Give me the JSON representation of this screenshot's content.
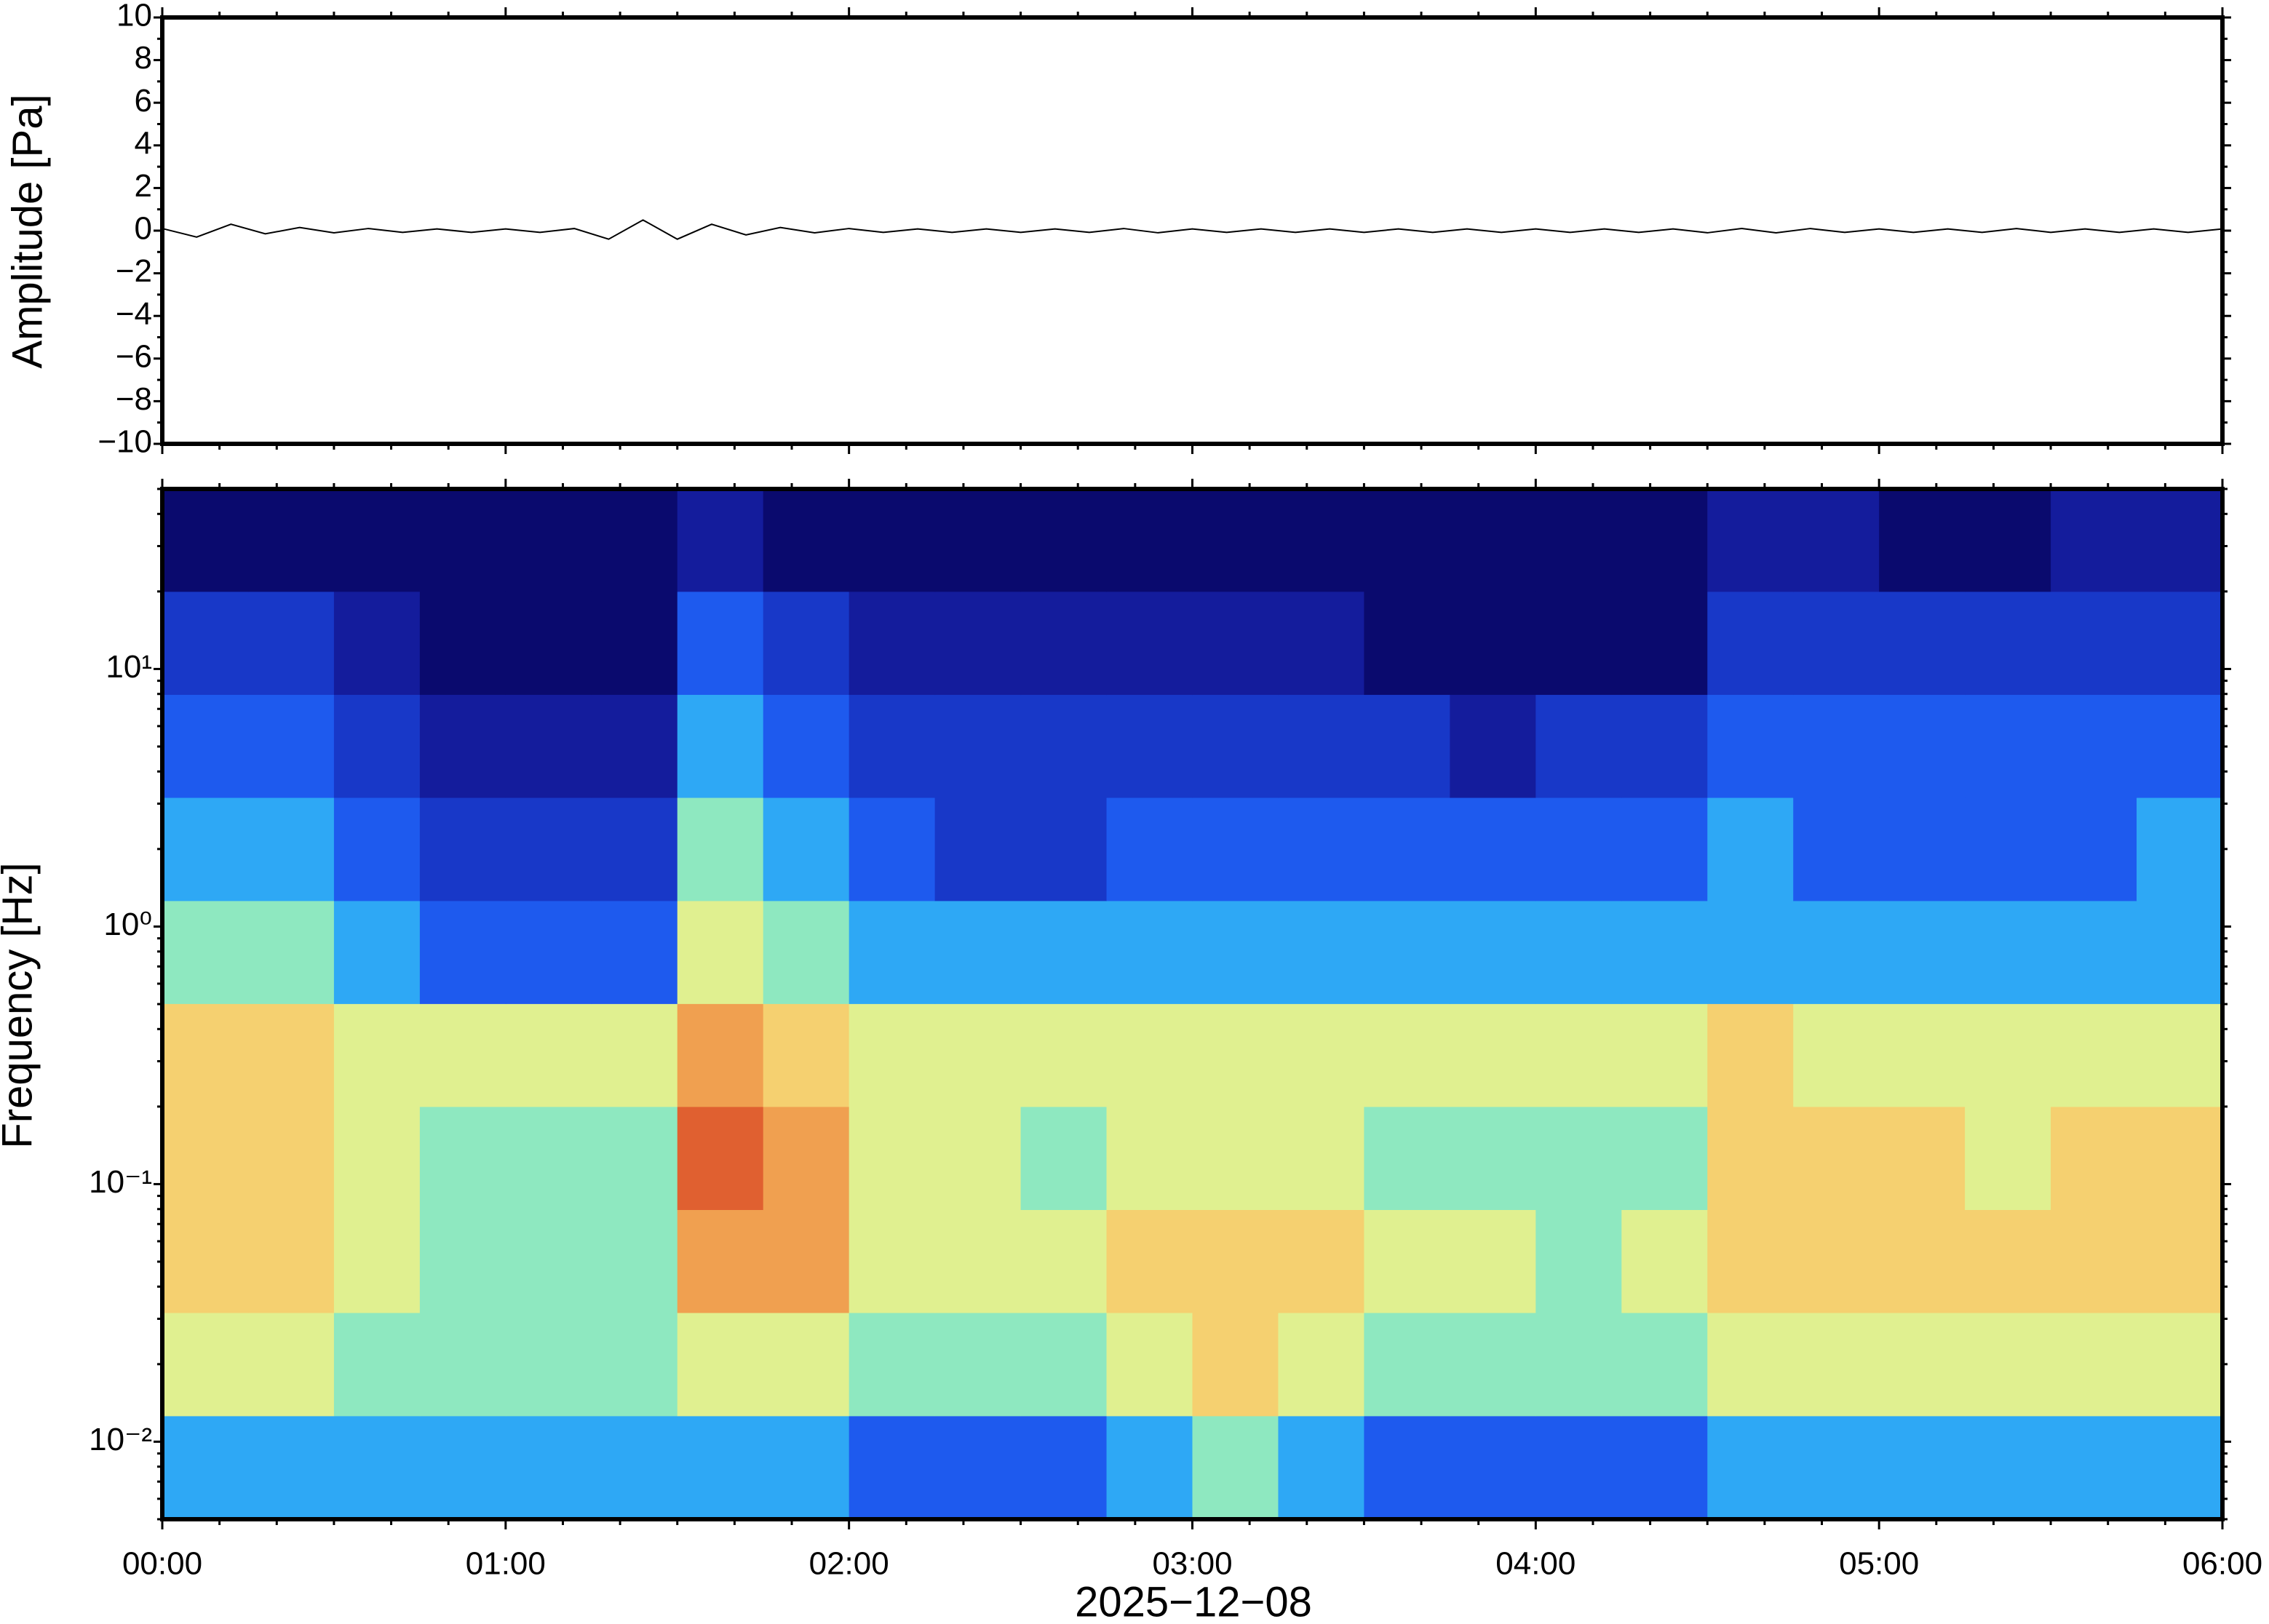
{
  "chart_data": [
    {
      "type": "line",
      "ylabel": "Amplitude [Pa]",
      "color": "#000000",
      "x": [
        0,
        0.1,
        0.2,
        0.3,
        0.4,
        0.5,
        0.6,
        0.7,
        0.8,
        0.9,
        1,
        1.1,
        1.2,
        1.3,
        1.4,
        1.5,
        1.6,
        1.7,
        1.8,
        1.9,
        2,
        2.1,
        2.2,
        2.3,
        2.4,
        2.5,
        2.6,
        2.7,
        2.8,
        2.9,
        3,
        3.1,
        3.2,
        3.3,
        3.4,
        3.5,
        3.6,
        3.7,
        3.8,
        3.9,
        4,
        4.1,
        4.2,
        4.3,
        4.4,
        4.5,
        4.6,
        4.7,
        4.8,
        4.9,
        5,
        5.1,
        5.2,
        5.3,
        5.4,
        5.5,
        5.6,
        5.7,
        5.8,
        5.9,
        6
      ],
      "values": [
        0.1,
        -0.3,
        0.3,
        -0.15,
        0.15,
        -0.1,
        0.1,
        -0.08,
        0.08,
        -0.08,
        0.08,
        -0.08,
        0.1,
        -0.4,
        0.5,
        -0.4,
        0.3,
        -0.2,
        0.15,
        -0.1,
        0.1,
        -0.08,
        0.08,
        -0.08,
        0.08,
        -0.08,
        0.08,
        -0.08,
        0.1,
        -0.1,
        0.08,
        -0.08,
        0.08,
        -0.08,
        0.08,
        -0.08,
        0.08,
        -0.08,
        0.08,
        -0.08,
        0.08,
        -0.08,
        0.08,
        -0.08,
        0.08,
        -0.1,
        0.1,
        -0.1,
        0.1,
        -0.08,
        0.08,
        -0.08,
        0.08,
        -0.08,
        0.1,
        -0.08,
        0.08,
        -0.08,
        0.08,
        -0.08,
        0.08
      ],
      "xlim": [
        0,
        6
      ],
      "xticks": [
        0,
        1,
        2,
        3,
        4,
        5,
        6
      ],
      "ylim": [
        -10,
        10
      ],
      "yticks": [
        {
          "value": -10,
          "label": "−10"
        },
        {
          "value": -8,
          "label": "−8"
        },
        {
          "value": -6,
          "label": "−6"
        },
        {
          "value": -4,
          "label": "−4"
        },
        {
          "value": -2,
          "label": "−2"
        },
        0,
        2,
        4,
        6,
        8,
        10
      ]
    },
    {
      "type": "heatmap",
      "ylabel": "Frequency [Hz]",
      "xlabel": "2025−12−08",
      "log_y": true,
      "colors": [
        "#0a0a6e",
        "#141c9c",
        "#1838c8",
        "#1e5aee",
        "#2ea8f5",
        "#50d8f0",
        "#8ee8c0",
        "#e0f090",
        "#f5d070",
        "#f0a050",
        "#e06030"
      ],
      "xbins": [
        0,
        0.25,
        0.5,
        0.75,
        1,
        1.25,
        1.5,
        1.75,
        2,
        2.25,
        2.5,
        2.75,
        3,
        3.25,
        3.5,
        3.75,
        4,
        4.25,
        4.5,
        4.75,
        5,
        5.25,
        5.5,
        5.75,
        6
      ],
      "ybins": [
        0.005,
        0.0126,
        0.0317,
        0.0796,
        0.2,
        0.502,
        1.26,
        3.17,
        7.96,
        20,
        50
      ],
      "z": [
        [
          4,
          4,
          4,
          4,
          4,
          4,
          4,
          4,
          3,
          3,
          3,
          4,
          5,
          4,
          3,
          3,
          3,
          3,
          4,
          4,
          4,
          4,
          4,
          4
        ],
        [
          6,
          6,
          5,
          5,
          5,
          5,
          6,
          6,
          5,
          5,
          5,
          6,
          7,
          6,
          5,
          5,
          5,
          5,
          6,
          6,
          6,
          6,
          6,
          6
        ],
        [
          7,
          7,
          6,
          5,
          5,
          5,
          8,
          8,
          6,
          6,
          6,
          7,
          7,
          7,
          6,
          6,
          5,
          6,
          7,
          7,
          7,
          7,
          7,
          7
        ],
        [
          7,
          7,
          6,
          5,
          5,
          5,
          9,
          8,
          6,
          6,
          5,
          6,
          6,
          6,
          5,
          5,
          5,
          5,
          7,
          7,
          7,
          6,
          7,
          7
        ],
        [
          7,
          7,
          6,
          6,
          6,
          6,
          8,
          7,
          6,
          6,
          6,
          6,
          6,
          6,
          6,
          6,
          6,
          6,
          7,
          6,
          6,
          6,
          6,
          6
        ],
        [
          5,
          5,
          4,
          3,
          3,
          3,
          6,
          5,
          4,
          4,
          4,
          4,
          4,
          4,
          4,
          4,
          4,
          4,
          4,
          4,
          4,
          4,
          4,
          4
        ],
        [
          4,
          4,
          3,
          2,
          2,
          2,
          5,
          4,
          3,
          2,
          2,
          3,
          3,
          3,
          3,
          3,
          3,
          3,
          4,
          3,
          3,
          3,
          3,
          4
        ],
        [
          3,
          3,
          2,
          1,
          1,
          1,
          4,
          3,
          2,
          2,
          2,
          2,
          2,
          2,
          2,
          1,
          2,
          2,
          3,
          3,
          3,
          3,
          3,
          3
        ],
        [
          2,
          2,
          1,
          0,
          0,
          0,
          3,
          2,
          1,
          1,
          1,
          1,
          1,
          1,
          0,
          0,
          0,
          0,
          2,
          2,
          2,
          2,
          2,
          2
        ],
        [
          0,
          0,
          0,
          0,
          0,
          0,
          1,
          0,
          0,
          0,
          0,
          0,
          0,
          0,
          0,
          0,
          0,
          0,
          1,
          1,
          0,
          0,
          1,
          1
        ]
      ],
      "xlim": [
        0,
        6
      ],
      "xticks": [
        {
          "value": 0,
          "label": "00:00"
        },
        {
          "value": 1,
          "label": "01:00"
        },
        {
          "value": 2,
          "label": "02:00"
        },
        {
          "value": 3,
          "label": "03:00"
        },
        {
          "value": 4,
          "label": "04:00"
        },
        {
          "value": 5,
          "label": "05:00"
        },
        {
          "value": 6,
          "label": "06:00"
        }
      ],
      "ylim": [
        0.005,
        50
      ],
      "yticks": [
        {
          "value": 0.01,
          "label": "10⁻²"
        },
        {
          "value": 0.1,
          "label": "10⁻¹"
        },
        {
          "value": 1,
          "label": "10⁰"
        },
        {
          "value": 10,
          "label": "10¹"
        }
      ]
    }
  ]
}
